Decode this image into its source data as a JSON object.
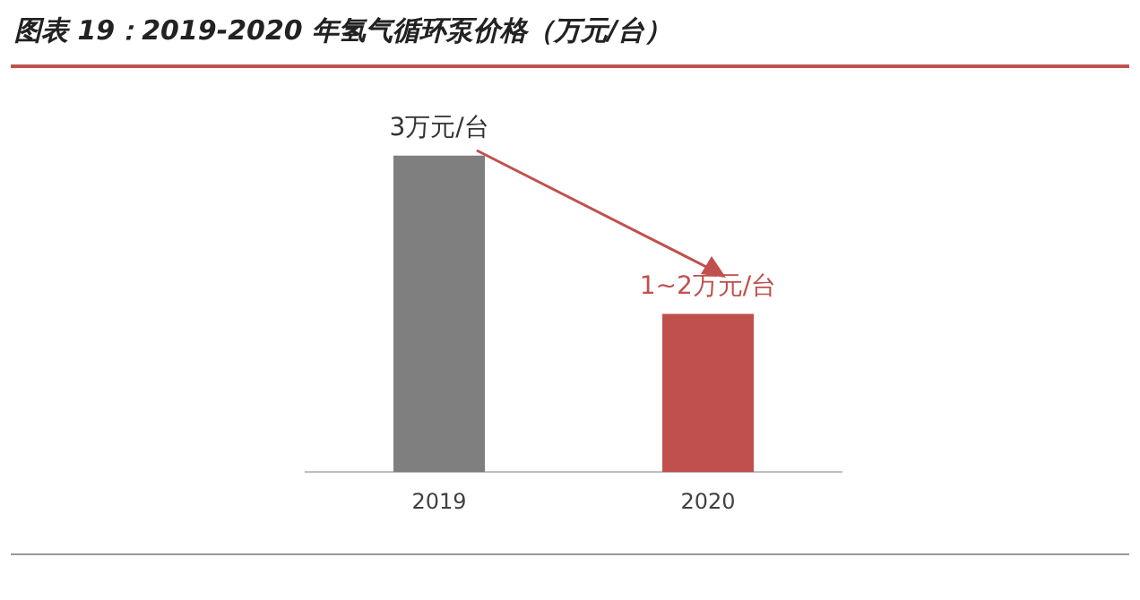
{
  "chart_data": {
    "type": "bar",
    "title": "图表 19：2019-2020 年氢气循环泵价格（万元/台）",
    "categories": [
      "2019",
      "2020"
    ],
    "values": [
      3,
      1.5
    ],
    "colors": [
      "#7f7f7f",
      "#c0504d"
    ],
    "value_labels": [
      "3万元/台",
      "1~2万元/台"
    ],
    "grid": false,
    "legend": false
  }
}
